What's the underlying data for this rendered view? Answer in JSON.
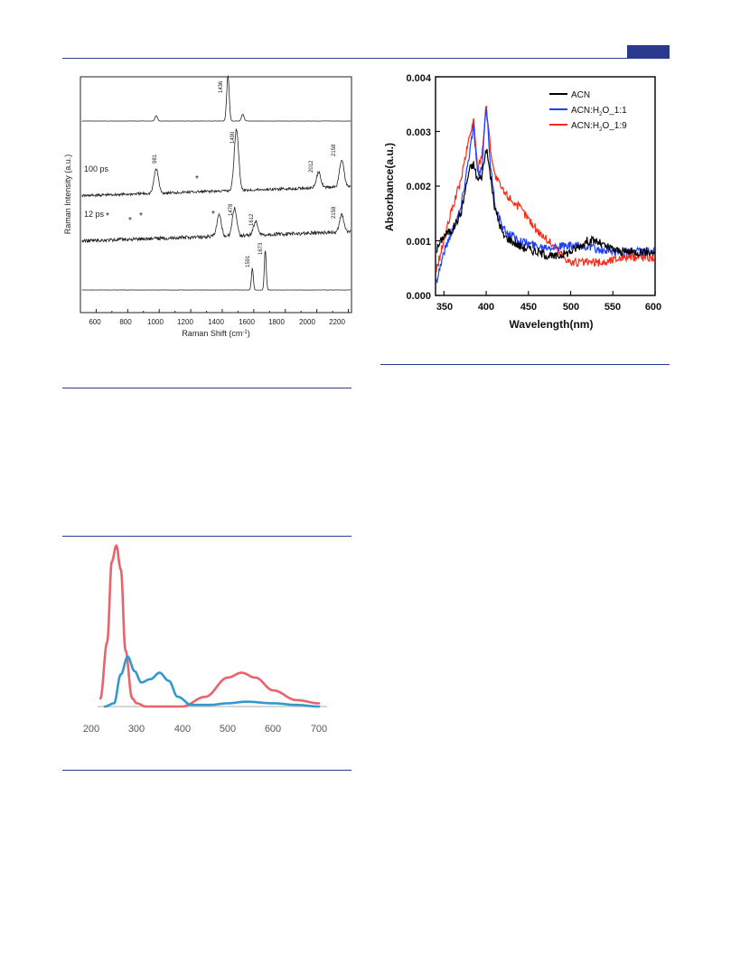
{
  "figures": {
    "raman": {
      "ylabel": "Raman Intensity (a.u.)",
      "xlabel": "Raman Shift (cm",
      "xlabel_sup": "-1",
      "xlabel_tail": ")",
      "xticks": [
        "600",
        "800",
        "1000",
        "1200",
        "1400",
        "1600",
        "1800",
        "2000",
        "2200"
      ],
      "trace_labels": [
        "100 ps",
        "12 ps"
      ],
      "peak_labels": [
        "1436",
        "981",
        "1490",
        "2012",
        "2158",
        "1478",
        "1612",
        "2158",
        "1591",
        "1673"
      ],
      "marker": "*"
    },
    "absorbance": {
      "ylabel": "Absorbance(a.u.)",
      "xlabel": "Wavelength(nm)",
      "yticks": [
        "0.000",
        "0.001",
        "0.002",
        "0.003",
        "0.004"
      ],
      "xticks": [
        "350",
        "400",
        "450",
        "500",
        "550",
        "600"
      ],
      "legend": {
        "acn": "ACN",
        "h2o_11_a": "ACN:H",
        "h2o_11_b": "O_1:1",
        "h2o_19_a": "ACN:H",
        "h2o_19_b": "O_1:9",
        "sub": "2"
      },
      "colors": {
        "acn": "#000000",
        "h2o_11": "#1f3fff",
        "h2o_19": "#ff2a14"
      }
    },
    "spectra": {
      "xticks": [
        "200",
        "300",
        "400",
        "500",
        "600",
        "700"
      ],
      "colors": {
        "red": "#e8636b",
        "blue": "#3498cf"
      }
    }
  },
  "chart_data": [
    {
      "type": "line",
      "xlabel": "Raman Shift (cm-1)",
      "ylabel": "Raman Intensity (a.u.)",
      "xlim": [
        500,
        2220
      ],
      "series": [
        {
          "name": "",
          "peaks_x": [
            981,
            1436,
            1530
          ],
          "peaks_rel": [
            0.12,
            1.0,
            0.15
          ]
        },
        {
          "name": "100 ps",
          "peaks_x": [
            981,
            1490,
            2012,
            2158
          ],
          "peaks_rel": [
            0.4,
            1.0,
            0.25,
            0.45
          ]
        },
        {
          "name": "12 ps",
          "peaks_x": [
            1380,
            1478,
            1612,
            2158
          ],
          "peaks_rel": [
            0.6,
            0.8,
            0.4,
            0.5
          ]
        },
        {
          "name": "",
          "peaks_x": [
            1591,
            1673
          ],
          "peaks_rel": [
            0.55,
            1.0
          ]
        }
      ]
    },
    {
      "type": "line",
      "xlabel": "Wavelength(nm)",
      "ylabel": "Absorbance(a.u.)",
      "xlim": [
        340,
        600
      ],
      "ylim": [
        0,
        0.004
      ],
      "series": [
        {
          "name": "ACN",
          "x": [
            340,
            350,
            360,
            370,
            380,
            385,
            390,
            395,
            400,
            405,
            410,
            420,
            440,
            460,
            480,
            500,
            520,
            530,
            540,
            560,
            580,
            600
          ],
          "y": [
            0.0008,
            0.0011,
            0.0012,
            0.0015,
            0.0023,
            0.0024,
            0.0021,
            0.0022,
            0.0027,
            0.0022,
            0.0016,
            0.0011,
            0.0009,
            0.0008,
            0.0007,
            0.0008,
            0.001,
            0.001,
            0.0009,
            0.0008,
            0.0008,
            0.0008
          ]
        },
        {
          "name": "ACN:H2O_1:1",
          "x": [
            340,
            350,
            360,
            370,
            380,
            385,
            390,
            395,
            400,
            405,
            410,
            420,
            440,
            460,
            480,
            500,
            520,
            540,
            560,
            580,
            600
          ],
          "y": [
            0.0002,
            0.0008,
            0.0012,
            0.0016,
            0.0026,
            0.0031,
            0.0022,
            0.0023,
            0.0035,
            0.0024,
            0.0017,
            0.0012,
            0.001,
            0.0009,
            0.0009,
            0.0009,
            0.0009,
            0.0008,
            0.0008,
            0.0008,
            0.0008
          ]
        },
        {
          "name": "ACN:H2O_1:9",
          "x": [
            340,
            350,
            360,
            370,
            380,
            385,
            390,
            395,
            400,
            405,
            410,
            420,
            440,
            460,
            480,
            500,
            520,
            540,
            560,
            580,
            600
          ],
          "y": [
            0.0004,
            0.001,
            0.0016,
            0.0021,
            0.0029,
            0.0032,
            0.0023,
            0.0026,
            0.0035,
            0.0027,
            0.0022,
            0.0019,
            0.0016,
            0.0012,
            0.0009,
            0.0006,
            0.0006,
            0.0006,
            0.0007,
            0.0007,
            0.0007
          ]
        }
      ]
    },
    {
      "type": "line",
      "xlim": [
        200,
        720
      ],
      "series": [
        {
          "name": "",
          "x": [
            220,
            235,
            245,
            255,
            265,
            275,
            290,
            300,
            320,
            400,
            450,
            500,
            530,
            560,
            600,
            650,
            700
          ],
          "y": [
            0.05,
            0.4,
            0.9,
            1.0,
            0.85,
            0.35,
            0.05,
            0.02,
            0.0,
            0.0,
            0.06,
            0.18,
            0.21,
            0.18,
            0.1,
            0.04,
            0.02
          ]
        },
        {
          "name": "",
          "x": [
            230,
            250,
            265,
            280,
            295,
            310,
            330,
            350,
            370,
            390,
            420,
            460,
            500,
            540,
            600,
            650,
            700
          ],
          "y": [
            0.0,
            0.02,
            0.2,
            0.31,
            0.22,
            0.15,
            0.17,
            0.21,
            0.16,
            0.06,
            0.01,
            0.01,
            0.02,
            0.03,
            0.02,
            0.01,
            0.0
          ]
        }
      ]
    }
  ]
}
